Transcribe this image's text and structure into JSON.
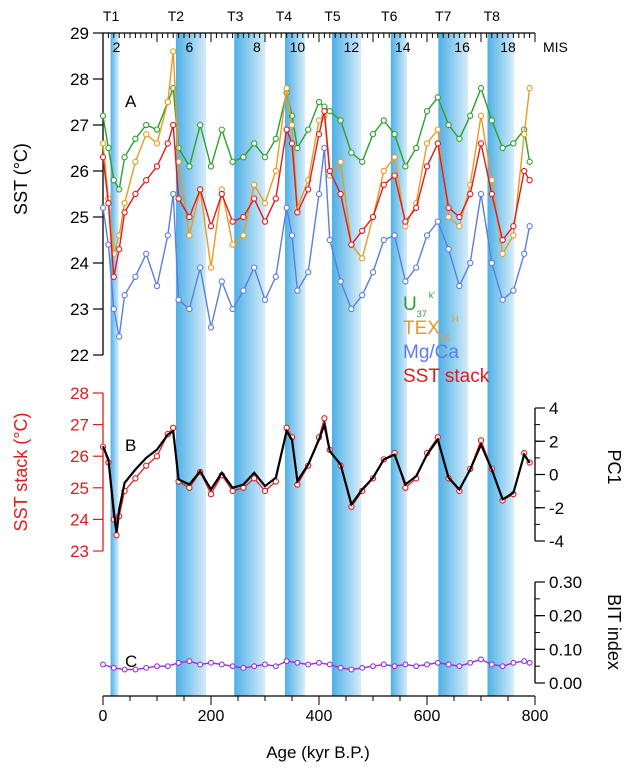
{
  "chart_data": {
    "type": "line",
    "shared_x": {
      "label": "Age (kyr B.P.)",
      "ticks": [
        0,
        200,
        400,
        600,
        800
      ],
      "range": [
        0,
        800
      ]
    },
    "terminations": [
      {
        "label": "T1",
        "age": 15
      },
      {
        "label": "T2",
        "age": 135
      },
      {
        "label": "T3",
        "age": 245
      },
      {
        "label": "T4",
        "age": 335
      },
      {
        "label": "T5",
        "age": 425
      },
      {
        "label": "T6",
        "age": 530
      },
      {
        "label": "T7",
        "age": 630
      },
      {
        "label": "T8",
        "age": 720
      }
    ],
    "mis": {
      "label": "MIS",
      "stages": [
        {
          "label": "2",
          "age": 25
        },
        {
          "label": "6",
          "age": 160
        },
        {
          "label": "8",
          "age": 285
        },
        {
          "label": "10",
          "age": 360
        },
        {
          "label": "12",
          "age": 460
        },
        {
          "label": "14",
          "age": 555
        },
        {
          "label": "16",
          "age": 665
        },
        {
          "label": "18",
          "age": 750
        }
      ]
    },
    "glacial_bands": [
      [
        14,
        29
      ],
      [
        135,
        191
      ],
      [
        243,
        300
      ],
      [
        337,
        374
      ],
      [
        424,
        478
      ],
      [
        533,
        563
      ],
      [
        621,
        676
      ],
      [
        712,
        761
      ]
    ],
    "panels": [
      {
        "id": "A",
        "label": "A",
        "ylabel": "SST (°C)",
        "ylim": [
          22,
          29
        ],
        "yticks": [
          22,
          23,
          24,
          25,
          26,
          27,
          28,
          29
        ],
        "legend": [
          {
            "text": "U",
            "sup": "k'",
            "sub": "37",
            "color": "#2ca02c"
          },
          {
            "text": "TEX",
            "sup": "H",
            "sub": "86",
            "color": "#e69c24"
          },
          {
            "text": "Mg/Ca",
            "sup": "",
            "sub": "",
            "color": "#5b7fde"
          },
          {
            "text": "SST stack",
            "sup": "",
            "sub": "",
            "color": "#e31a1c"
          }
        ],
        "series": [
          {
            "name": "U",
            "color": "#2ca02c",
            "x": [
              0,
              10,
              20,
              30,
              40,
              60,
              80,
              100,
              120,
              130,
              140,
              160,
              180,
              200,
              220,
              240,
              260,
              280,
              300,
              320,
              340,
              350,
              360,
              380,
              400,
              410,
              420,
              440,
              460,
              480,
              500,
              520,
              540,
              560,
              580,
              600,
              620,
              640,
              660,
              680,
              700,
              720,
              740,
              760,
              780,
              790
            ],
            "y": [
              27.2,
              26.5,
              25.8,
              25.6,
              26.3,
              26.7,
              27.0,
              26.9,
              27.5,
              27.8,
              26.5,
              26.1,
              27.0,
              26.1,
              26.9,
              26.2,
              26.3,
              26.6,
              26.3,
              26.7,
              27.7,
              27.2,
              26.5,
              26.9,
              27.5,
              27.4,
              27.3,
              27.1,
              26.4,
              26.2,
              26.8,
              27.1,
              26.8,
              26.1,
              26.5,
              27.3,
              27.6,
              27.0,
              26.7,
              27.2,
              27.8,
              27.1,
              26.5,
              26.6,
              26.9,
              26.2
            ]
          },
          {
            "name": "TEX",
            "color": "#e69c24",
            "x": [
              0,
              10,
              20,
              30,
              40,
              60,
              80,
              100,
              120,
              130,
              140,
              160,
              180,
              200,
              220,
              240,
              260,
              280,
              300,
              320,
              340,
              350,
              360,
              380,
              400,
              410,
              420,
              440,
              460,
              480,
              500,
              520,
              540,
              560,
              580,
              600,
              620,
              640,
              660,
              680,
              700,
              720,
              740,
              760,
              780,
              790
            ],
            "y": [
              26.6,
              25.4,
              24.2,
              24.6,
              25.3,
              26.2,
              26.8,
              26.6,
              27.5,
              28.6,
              26.2,
              24.6,
              25.6,
              23.9,
              25.6,
              24.4,
              24.6,
              25.7,
              25.3,
              26.0,
              27.8,
              27.0,
              25.2,
              25.8,
              27.1,
              27.2,
              25.9,
              26.2,
              24.4,
              24.1,
              25.0,
              26.0,
              26.3,
              24.8,
              25.3,
              26.6,
              26.9,
              25.0,
              24.8,
              25.7,
              27.2,
              25.8,
              24.2,
              24.6,
              26.8,
              27.8
            ]
          },
          {
            "name": "Mg/Ca",
            "color": "#5b7fde",
            "x": [
              0,
              10,
              20,
              30,
              40,
              60,
              80,
              100,
              120,
              130,
              140,
              160,
              180,
              200,
              220,
              240,
              260,
              280,
              300,
              320,
              340,
              350,
              360,
              380,
              400,
              410,
              420,
              440,
              460,
              480,
              500,
              520,
              540,
              560,
              580,
              600,
              620,
              640,
              660,
              680,
              700,
              720,
              740,
              760,
              780,
              790
            ],
            "y": [
              25.2,
              24.4,
              23.0,
              22.4,
              23.3,
              23.7,
              24.2,
              23.5,
              24.6,
              25.5,
              23.2,
              23.0,
              23.9,
              22.6,
              23.6,
              23.0,
              23.4,
              23.9,
              23.2,
              23.7,
              25.2,
              24.6,
              23.4,
              23.8,
              25.5,
              26.5,
              24.5,
              23.6,
              23.0,
              23.3,
              23.8,
              24.5,
              24.6,
              23.6,
              23.9,
              24.6,
              24.9,
              24.3,
              23.5,
              24.0,
              25.5,
              24.0,
              23.2,
              23.4,
              24.2,
              24.8
            ]
          },
          {
            "name": "SST stack",
            "color": "#e31a1c",
            "x": [
              0,
              10,
              20,
              30,
              40,
              60,
              80,
              100,
              120,
              130,
              140,
              160,
              180,
              200,
              220,
              240,
              260,
              280,
              300,
              320,
              340,
              350,
              360,
              380,
              400,
              410,
              420,
              440,
              460,
              480,
              500,
              520,
              540,
              560,
              580,
              600,
              620,
              640,
              660,
              680,
              700,
              720,
              740,
              760,
              780,
              790
            ],
            "y": [
              26.3,
              25.3,
              23.7,
              24.3,
              25.1,
              25.5,
              25.8,
              26.1,
              26.6,
              27.0,
              25.4,
              25.0,
              25.6,
              24.8,
              25.5,
              24.9,
              25.0,
              25.4,
              24.9,
              25.4,
              26.9,
              26.6,
              25.1,
              25.6,
              26.8,
              27.3,
              26.0,
              25.5,
              24.4,
              24.7,
              25.0,
              25.7,
              25.9,
              24.9,
              25.2,
              26.1,
              26.6,
              25.2,
              25.0,
              25.5,
              26.6,
              25.5,
              24.5,
              24.8,
              26.0,
              25.8
            ]
          }
        ]
      },
      {
        "id": "B",
        "label": "B",
        "ylabel": "SST stack (°C)",
        "ylim": [
          23,
          28
        ],
        "yticks": [
          23,
          24,
          25,
          26,
          27,
          28
        ],
        "y2label": "PC1",
        "y2lim": [
          -4,
          4
        ],
        "y2ticks": [
          -4,
          -2,
          0,
          2,
          4
        ],
        "series": [
          {
            "name": "SST stack",
            "color": "#e31a1c",
            "x": [
              0,
              10,
              20,
              25,
              30,
              40,
              60,
              80,
              100,
              120,
              130,
              140,
              160,
              180,
              200,
              220,
              240,
              260,
              280,
              300,
              320,
              340,
              350,
              360,
              380,
              400,
              410,
              420,
              440,
              460,
              480,
              500,
              520,
              540,
              560,
              580,
              600,
              620,
              640,
              660,
              680,
              700,
              720,
              740,
              760,
              780,
              790
            ],
            "y": [
              26.3,
              25.8,
              24.0,
              23.5,
              24.1,
              24.9,
              25.3,
              25.7,
              26.0,
              26.7,
              26.9,
              25.2,
              25.0,
              25.5,
              24.8,
              25.4,
              24.9,
              25.0,
              25.3,
              24.9,
              25.2,
              26.9,
              26.6,
              25.1,
              25.7,
              26.6,
              27.2,
              26.2,
              25.7,
              24.4,
              24.9,
              25.3,
              25.9,
              26.1,
              25.0,
              25.3,
              26.1,
              26.6,
              25.3,
              24.9,
              25.6,
              26.5,
              25.6,
              24.6,
              24.8,
              26.1,
              25.8
            ]
          },
          {
            "name": "PC1",
            "color": "#000000",
            "axis": "right",
            "x": [
              0,
              10,
              20,
              25,
              30,
              40,
              60,
              80,
              100,
              120,
              130,
              140,
              160,
              180,
              200,
              220,
              240,
              260,
              280,
              300,
              320,
              340,
              350,
              360,
              380,
              400,
              410,
              420,
              440,
              460,
              480,
              500,
              520,
              540,
              560,
              580,
              600,
              620,
              640,
              660,
              680,
              700,
              720,
              740,
              760,
              780,
              790
            ],
            "y": [
              1.7,
              0.9,
              -2.2,
              -3.5,
              -2.1,
              -0.5,
              0.3,
              1.0,
              1.5,
              2.4,
              2.6,
              -0.3,
              -0.6,
              0.2,
              -0.9,
              0.1,
              -0.8,
              -0.6,
              0.1,
              -0.7,
              -0.2,
              2.6,
              2.1,
              -0.4,
              0.6,
              2.1,
              3.0,
              1.4,
              0.6,
              -1.8,
              -0.9,
              -0.2,
              0.9,
              1.2,
              -0.6,
              -0.1,
              1.2,
              2.1,
              -0.2,
              -0.9,
              0.3,
              1.8,
              0.3,
              -1.5,
              -1.1,
              1.2,
              0.7
            ]
          }
        ]
      },
      {
        "id": "C",
        "label": "C",
        "ylabel": "BIT index",
        "ylim": [
          0,
          0.3
        ],
        "yticks": [
          "0.00",
          "0.10",
          "0.20",
          "0.30"
        ],
        "series": [
          {
            "name": "BIT index",
            "color": "#9b30d9",
            "x": [
              0,
              20,
              40,
              60,
              80,
              100,
              120,
              140,
              160,
              180,
              200,
              220,
              240,
              260,
              280,
              300,
              320,
              340,
              360,
              380,
              400,
              420,
              440,
              460,
              480,
              500,
              520,
              540,
              560,
              580,
              600,
              620,
              640,
              660,
              680,
              700,
              720,
              740,
              760,
              780,
              790
            ],
            "y": [
              0.055,
              0.045,
              0.04,
              0.04,
              0.045,
              0.05,
              0.05,
              0.06,
              0.065,
              0.055,
              0.06,
              0.055,
              0.05,
              0.045,
              0.05,
              0.055,
              0.05,
              0.065,
              0.06,
              0.055,
              0.06,
              0.055,
              0.045,
              0.04,
              0.045,
              0.05,
              0.055,
              0.05,
              0.055,
              0.05,
              0.055,
              0.06,
              0.055,
              0.05,
              0.06,
              0.07,
              0.055,
              0.05,
              0.06,
              0.065,
              0.06
            ]
          }
        ]
      }
    ]
  }
}
